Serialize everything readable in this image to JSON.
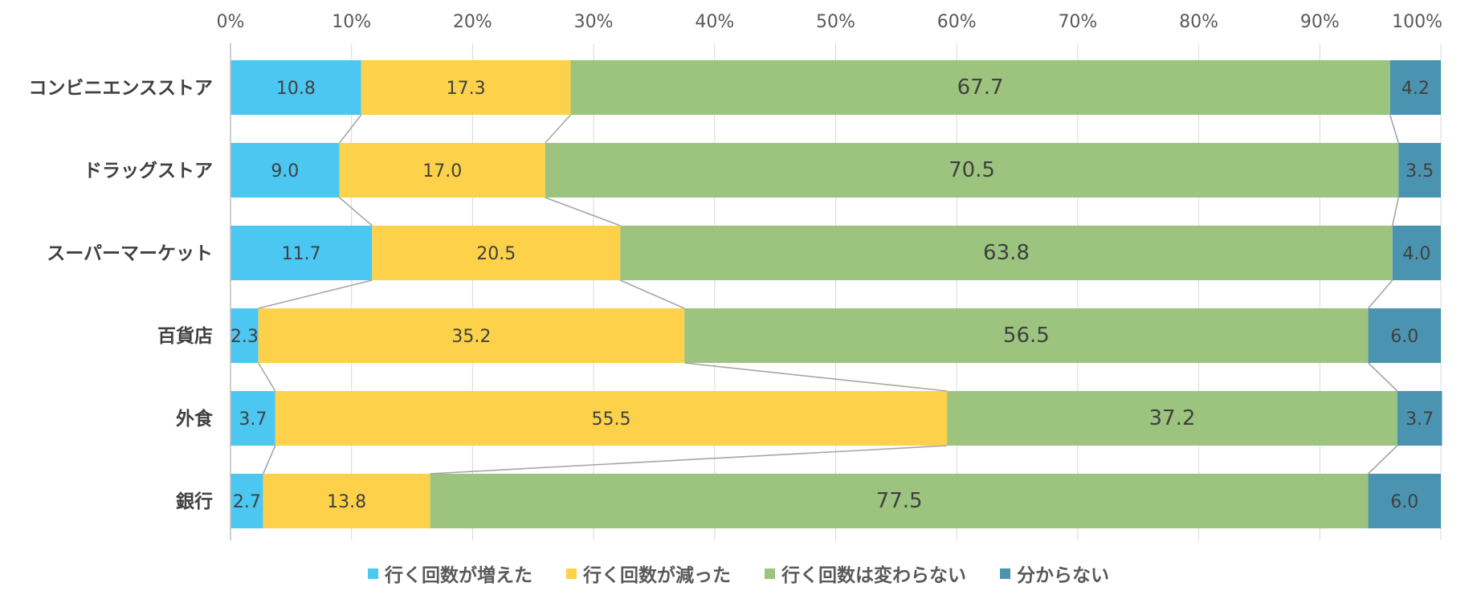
{
  "chart_data": {
    "type": "bar",
    "orientation": "horizontal-stacked-100",
    "categories": [
      "コンビニエンスストア",
      "ドラッグストア",
      "スーパーマーケット",
      "百貨店",
      "外食",
      "銀行"
    ],
    "series": [
      {
        "name": "行く回数が増えた",
        "color": "#4cc7f2",
        "values": [
          10.8,
          9.0,
          11.7,
          2.3,
          3.7,
          2.7
        ]
      },
      {
        "name": "行く回数が減った",
        "color": "#fdd24a",
        "values": [
          17.3,
          17.0,
          20.5,
          35.2,
          55.5,
          13.8
        ]
      },
      {
        "name": "行く回数は変わらない",
        "color": "#9cc47f",
        "values": [
          67.7,
          70.5,
          63.8,
          56.5,
          37.2,
          77.5
        ]
      },
      {
        "name": "分からない",
        "color": "#4b94b1",
        "values": [
          4.2,
          3.5,
          4.0,
          6.0,
          3.7,
          6.0
        ]
      }
    ],
    "xticks": [
      "0%",
      "10%",
      "20%",
      "30%",
      "40%",
      "50%",
      "60%",
      "70%",
      "80%",
      "90%",
      "100%"
    ],
    "xlim": [
      0,
      100
    ],
    "grid": true,
    "legend_position": "bottom",
    "series_lines": true
  }
}
